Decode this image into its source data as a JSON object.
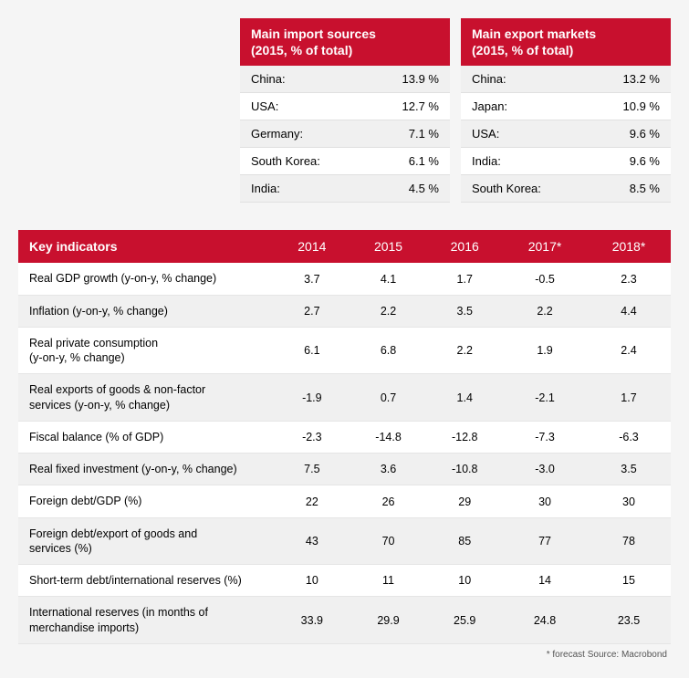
{
  "imports": {
    "title": "Main import sources\n(2015, % of total)",
    "rows": [
      {
        "country": "China:",
        "value": "13.9 %"
      },
      {
        "country": "USA:",
        "value": "12.7 %"
      },
      {
        "country": "Germany:",
        "value": "7.1 %"
      },
      {
        "country": "South Korea:",
        "value": "6.1 %"
      },
      {
        "country": "India:",
        "value": "4.5 %"
      }
    ]
  },
  "exports": {
    "title": "Main export markets\n(2015, % of total)",
    "rows": [
      {
        "country": "China:",
        "value": "13.2 %"
      },
      {
        "country": "Japan:",
        "value": "10.9 %"
      },
      {
        "country": "USA:",
        "value": "9.6 %"
      },
      {
        "country": "India:",
        "value": "9.6 %"
      },
      {
        "country": "South Korea:",
        "value": "8.5 %"
      }
    ]
  },
  "key": {
    "headerLabel": "Key indicators",
    "years": [
      "2014",
      "2015",
      "2016",
      "2017*",
      "2018*"
    ],
    "rows": [
      {
        "label": "Real GDP growth (y-on-y, % change)",
        "vals": [
          "3.7",
          "4.1",
          "1.7",
          "-0.5",
          "2.3"
        ]
      },
      {
        "label": "Inflation (y-on-y, % change)",
        "vals": [
          "2.7",
          "2.2",
          "3.5",
          "2.2",
          "4.4"
        ]
      },
      {
        "label": "Real private consumption\n(y-on-y, % change)",
        "vals": [
          "6.1",
          "6.8",
          "2.2",
          "1.9",
          "2.4"
        ]
      },
      {
        "label": "Real exports of goods & non-factor\nservices (y-on-y, % change)",
        "vals": [
          "-1.9",
          "0.7",
          "1.4",
          "-2.1",
          "1.7"
        ]
      },
      {
        "label": "Fiscal balance (% of GDP)",
        "vals": [
          "-2.3",
          "-14.8",
          "-12.8",
          "-7.3",
          "-6.3"
        ]
      },
      {
        "label": "Real fixed investment (y-on-y, % change)",
        "vals": [
          "7.5",
          "3.6",
          "-10.8",
          "-3.0",
          "3.5"
        ]
      },
      {
        "label": "Foreign debt/GDP (%)",
        "vals": [
          "22",
          "26",
          "29",
          "30",
          "30"
        ]
      },
      {
        "label": "Foreign debt/export of goods and\nservices (%)",
        "vals": [
          "43",
          "70",
          "85",
          "77",
          "78"
        ]
      },
      {
        "label": "Short-term debt/international reserves (%)",
        "vals": [
          "10",
          "11",
          "10",
          "14",
          "15"
        ]
      },
      {
        "label": "International reserves (in months of\nmerchandise imports)",
        "vals": [
          "33.9",
          "29.9",
          "25.9",
          "24.8",
          "23.5"
        ]
      }
    ]
  },
  "footnote": "* forecast    Source: Macrobond",
  "colors": {
    "brand": "#c8102e",
    "altRow": "#f0f0f0",
    "bg": "#f5f5f5"
  }
}
